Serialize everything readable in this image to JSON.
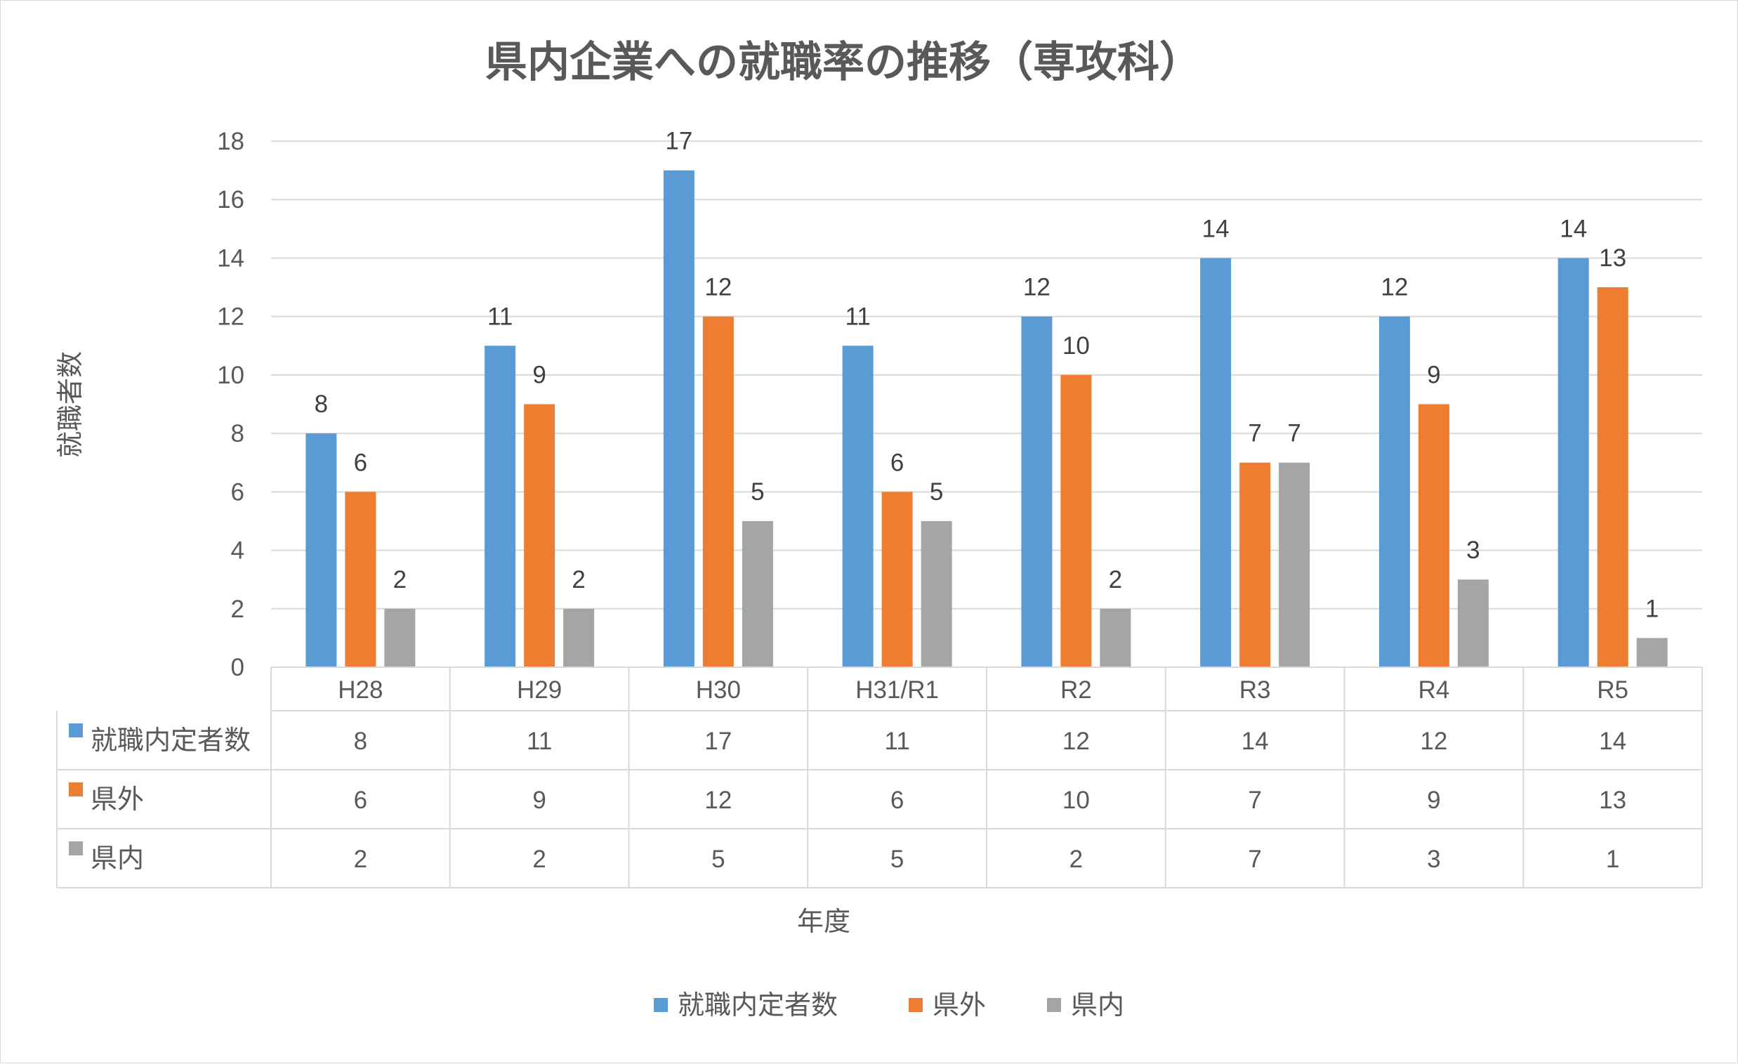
{
  "chart_data": {
    "type": "bar",
    "title": "県内企業への就職率の推移（専攻科）",
    "xlabel": "年度",
    "ylabel": "就職者数",
    "ylim": [
      0,
      18
    ],
    "yticks": [
      0,
      2,
      4,
      6,
      8,
      10,
      12,
      14,
      16,
      18
    ],
    "categories": [
      "H28",
      "H29",
      "H30",
      "H31/R1",
      "R2",
      "R3",
      "R4",
      "R5"
    ],
    "series": [
      {
        "name": "就職内定者数",
        "color": "#5b9bd5",
        "values": [
          8,
          11,
          17,
          11,
          12,
          14,
          12,
          14
        ]
      },
      {
        "name": "県外",
        "color": "#ed7d31",
        "values": [
          6,
          9,
          12,
          6,
          10,
          7,
          9,
          13
        ]
      },
      {
        "name": "県内",
        "color": "#a5a5a5",
        "values": [
          2,
          2,
          5,
          5,
          2,
          7,
          3,
          1
        ]
      }
    ],
    "grid": true,
    "data_labels": true,
    "data_table": true,
    "legend": "bottom"
  }
}
